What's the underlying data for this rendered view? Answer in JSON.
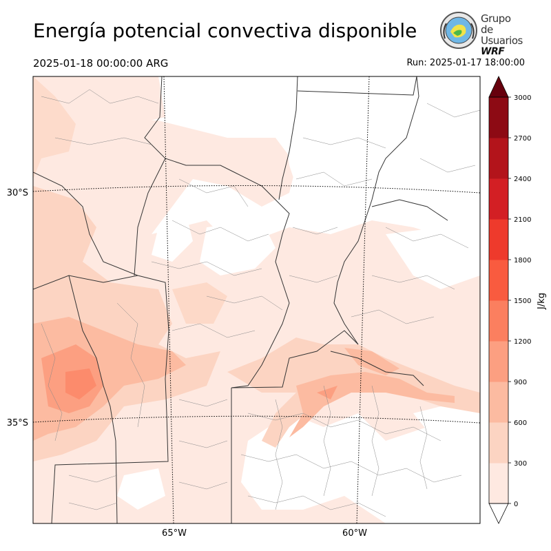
{
  "header": {
    "title": "Energía potencial convectiva disponible",
    "valid_time": "2025-01-18 00:00:00 ARG",
    "run_time": "Run: 2025-01-17 18:00:00"
  },
  "logo": {
    "line1": "Grupo de",
    "line2": "Usuarios",
    "line3": "WRF",
    "icon": "wrf-users-group-logo-icon"
  },
  "map": {
    "lat_labels": [
      "30°S",
      "35°S"
    ],
    "lon_labels": [
      "65°W",
      "60°W"
    ],
    "fill_colors": [
      "#fee9e1",
      "#fcd4c2",
      "#fcbba1",
      "#fc9f81",
      "#fb7f5f",
      "#f95b3f",
      "#ee3a2c",
      "#d31f24",
      "#b3141b",
      "#8d0a14",
      "#67000d"
    ]
  },
  "colorbar": {
    "label": "J/kg",
    "ticks": [
      "0",
      "300",
      "600",
      "900",
      "1200",
      "1500",
      "1800",
      "2100",
      "2400",
      "2700",
      "3000"
    ],
    "colors": [
      "#fee9e1",
      "#fcd4c2",
      "#fcbba1",
      "#fc9f81",
      "#fb7f5f",
      "#f95b3f",
      "#ee3a2c",
      "#d31f24",
      "#b3141b",
      "#8d0a14"
    ],
    "extend_color": "#67000d"
  }
}
